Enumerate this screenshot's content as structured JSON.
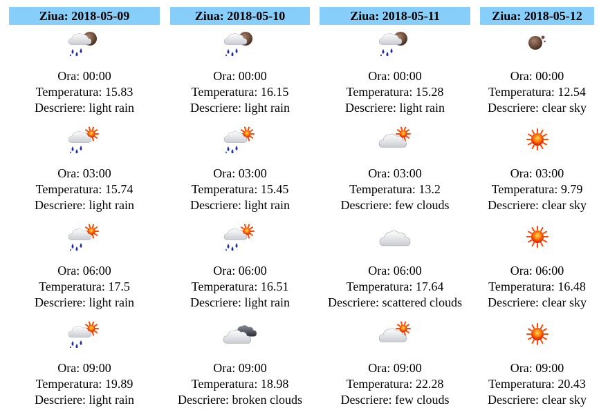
{
  "ora_label": "Ora: ",
  "temp_label": "Temperatura: ",
  "desc_label": "Descriere: ",
  "days": [
    {
      "header": "Ziua: 2018-05-09",
      "entries": [
        {
          "time": "00:00",
          "temp": "15.83",
          "desc": "light rain",
          "icon": "rain-moon-icon"
        },
        {
          "time": "03:00",
          "temp": "15.74",
          "desc": "light rain",
          "icon": "rain-sun-icon"
        },
        {
          "time": "06:00",
          "temp": "17.5",
          "desc": "light rain",
          "icon": "rain-sun-icon"
        },
        {
          "time": "09:00",
          "temp": "19.89",
          "desc": "light rain",
          "icon": "rain-sun-icon"
        }
      ]
    },
    {
      "header": "Ziua: 2018-05-10",
      "entries": [
        {
          "time": "00:00",
          "temp": "16.15",
          "desc": "light rain",
          "icon": "rain-moon-icon"
        },
        {
          "time": "03:00",
          "temp": "15.45",
          "desc": "light rain",
          "icon": "rain-sun-icon"
        },
        {
          "time": "06:00",
          "temp": "16.51",
          "desc": "light rain",
          "icon": "rain-sun-icon"
        },
        {
          "time": "09:00",
          "temp": "18.98",
          "desc": "broken clouds",
          "icon": "broken-clouds-icon"
        }
      ]
    },
    {
      "header": "Ziua: 2018-05-11",
      "entries": [
        {
          "time": "00:00",
          "temp": "15.28",
          "desc": "light rain",
          "icon": "rain-moon-icon"
        },
        {
          "time": "03:00",
          "temp": "13.2",
          "desc": "few clouds",
          "icon": "few-clouds-icon"
        },
        {
          "time": "06:00",
          "temp": "17.64",
          "desc": "scattered clouds",
          "icon": "cloud-icon"
        },
        {
          "time": "09:00",
          "temp": "22.28",
          "desc": "few clouds",
          "icon": "few-clouds-icon"
        }
      ]
    },
    {
      "header": "Ziua: 2018-05-12",
      "entries": [
        {
          "time": "00:00",
          "temp": "12.54",
          "desc": "clear sky",
          "icon": "moon-icon"
        },
        {
          "time": "03:00",
          "temp": "9.79",
          "desc": "clear sky",
          "icon": "sun-icon"
        },
        {
          "time": "06:00",
          "temp": "16.48",
          "desc": "clear sky",
          "icon": "sun-icon"
        },
        {
          "time": "09:00",
          "temp": "20.43",
          "desc": "clear sky",
          "icon": "sun-icon"
        }
      ]
    }
  ]
}
